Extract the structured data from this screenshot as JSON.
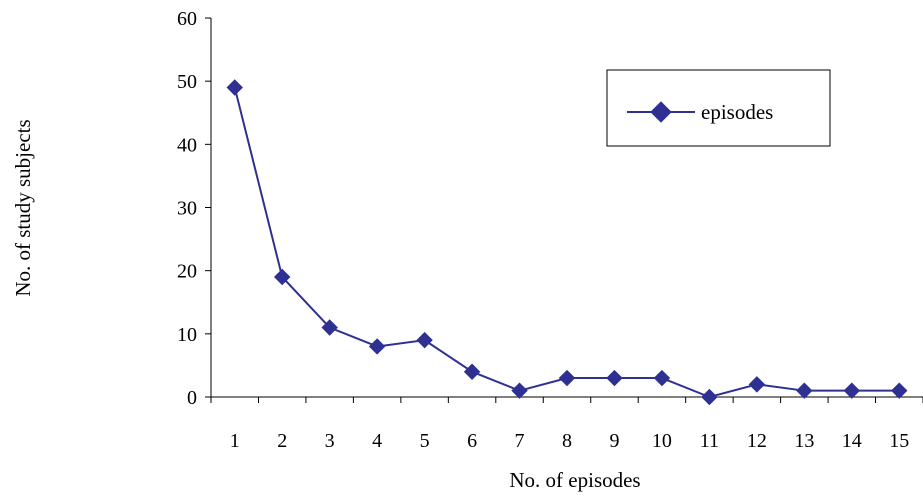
{
  "chart_data": {
    "type": "line",
    "title": "",
    "xlabel": "No. of episodes",
    "ylabel": "No. of study subjects",
    "categories": [
      "1",
      "2",
      "3",
      "4",
      "5",
      "6",
      "7",
      "8",
      "9",
      "10",
      "11",
      "12",
      "13",
      "14",
      "15"
    ],
    "series": [
      {
        "name": "episodes",
        "values": [
          49,
          19,
          11,
          8,
          9,
          4,
          1,
          3,
          3,
          3,
          0,
          2,
          1,
          1,
          1
        ]
      }
    ],
    "ylim": [
      0,
      60
    ],
    "yticks": [
      "0",
      "10",
      "20",
      "30",
      "40",
      "50",
      "60"
    ],
    "grid": false,
    "legend_position": "top-right",
    "colors": {
      "series": "#2e3192",
      "axis": "#000000"
    },
    "marker": "diamond"
  }
}
